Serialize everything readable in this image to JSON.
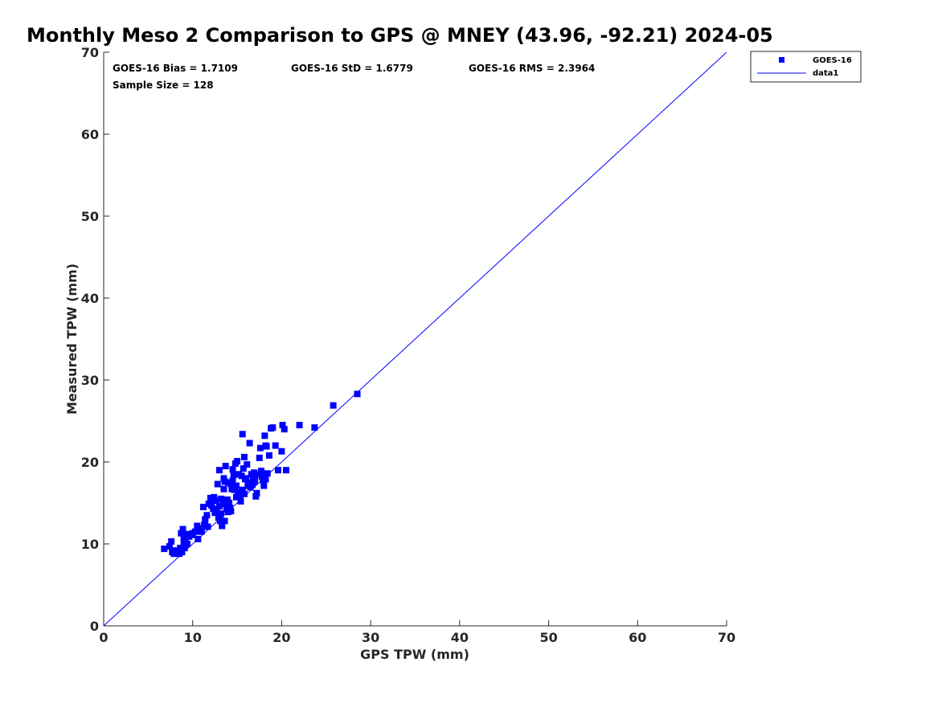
{
  "chart_data": {
    "type": "scatter",
    "title": "Monthly Meso 2 Comparison to GPS @ MNEY (43.96, -92.21) 2024-05",
    "xlabel": "GPS TPW (mm)",
    "ylabel": "Measured TPW (mm)",
    "xlim": [
      0,
      70
    ],
    "ylim": [
      0,
      70
    ],
    "xticks": [
      "0",
      "10",
      "20",
      "30",
      "40",
      "50",
      "60",
      "70"
    ],
    "yticks": [
      "0",
      "10",
      "20",
      "30",
      "40",
      "50",
      "60",
      "70"
    ],
    "grid": false,
    "legend_position": "top-right, outside plot",
    "colors": {
      "points": "#0000ff",
      "line": "#0000ff",
      "axis": "#262626"
    },
    "stats": {
      "bias": "GOES-16 Bias = 1.7109",
      "std": "GOES-16 StD = 1.6779",
      "rms": "GOES-16 RMS = 2.3964",
      "sample": "Sample Size = 128"
    },
    "series": [
      {
        "name": "GOES-16",
        "type": "scatter",
        "x": [
          6.8,
          7.4,
          7.6,
          7.7,
          7.9,
          8.0,
          8.3,
          8.5,
          8.6,
          8.7,
          8.8,
          8.9,
          9.0,
          9.0,
          9.1,
          9.2,
          9.3,
          9.4,
          9.5,
          9.6,
          10.0,
          10.3,
          10.5,
          10.6,
          10.8,
          11.0,
          11.2,
          11.3,
          11.4,
          11.6,
          11.7,
          11.8,
          12.0,
          12.1,
          12.2,
          12.3,
          12.5,
          12.6,
          12.7,
          12.8,
          12.9,
          13.0,
          13.0,
          13.1,
          13.2,
          13.2,
          13.3,
          13.4,
          13.5,
          13.5,
          13.6,
          13.7,
          13.8,
          13.9,
          14.0,
          14.0,
          14.1,
          14.2,
          14.3,
          14.4,
          14.5,
          14.5,
          14.6,
          14.7,
          14.8,
          14.9,
          15.0,
          15.1,
          15.2,
          15.3,
          15.4,
          15.5,
          15.6,
          15.7,
          15.8,
          15.9,
          16.0,
          16.1,
          16.2,
          16.3,
          16.4,
          16.5,
          16.6,
          16.7,
          16.8,
          16.9,
          17.0,
          17.1,
          17.2,
          17.4,
          17.5,
          17.6,
          17.7,
          17.8,
          17.9,
          18.0,
          18.1,
          18.2,
          18.3,
          18.4,
          18.6,
          18.8,
          19.0,
          19.3,
          19.6,
          20.0,
          20.1,
          20.3,
          20.5,
          22.0,
          23.7,
          25.8,
          28.5,
          13.6,
          14.3,
          15.8,
          12.4,
          16.7,
          17.0,
          11.4,
          9.2,
          10.0,
          13.1,
          14.9,
          15.6,
          16.9,
          18.2,
          13.9
        ],
        "y": [
          9.4,
          9.7,
          10.3,
          9.0,
          8.8,
          9.2,
          8.9,
          8.8,
          9.5,
          11.3,
          9.0,
          11.8,
          10.2,
          10.7,
          9.5,
          10.4,
          11.2,
          10.0,
          11.0,
          10.9,
          11.1,
          11.5,
          12.2,
          10.6,
          11.9,
          11.5,
          14.5,
          12.3,
          12.8,
          13.5,
          12.1,
          14.9,
          15.6,
          14.7,
          15.2,
          14.3,
          13.8,
          15.3,
          14.0,
          17.3,
          13.2,
          19.0,
          14.6,
          12.8,
          13.7,
          15.5,
          12.2,
          14.9,
          18.0,
          16.7,
          17.6,
          19.5,
          14.2,
          15.4,
          17.5,
          13.9,
          15.0,
          14.4,
          17.3,
          16.7,
          19.1,
          17.7,
          18.4,
          16.6,
          19.8,
          17.1,
          20.1,
          16.3,
          18.5,
          15.8,
          15.2,
          18.3,
          23.4,
          19.2,
          20.6,
          17.9,
          18.0,
          19.7,
          17.1,
          17.5,
          22.3,
          16.9,
          18.5,
          17.3,
          18.1,
          17.6,
          17.8,
          15.8,
          16.2,
          18.5,
          20.5,
          21.7,
          18.9,
          18.2,
          17.8,
          17.1,
          23.2,
          22.0,
          21.9,
          18.6,
          20.8,
          24.1,
          24.2,
          22.0,
          19.0,
          21.3,
          24.5,
          24.0,
          19.0,
          24.5,
          24.2,
          26.9,
          28.3,
          12.8,
          14.0,
          16.1,
          15.7,
          17.2,
          18.3,
          13.0,
          10.1,
          11.3,
          13.4,
          15.7,
          16.6,
          18.7,
          17.9,
          14.6
        ]
      },
      {
        "name": "data1",
        "type": "line",
        "x": [
          0,
          70
        ],
        "y": [
          0,
          70
        ]
      }
    ]
  }
}
